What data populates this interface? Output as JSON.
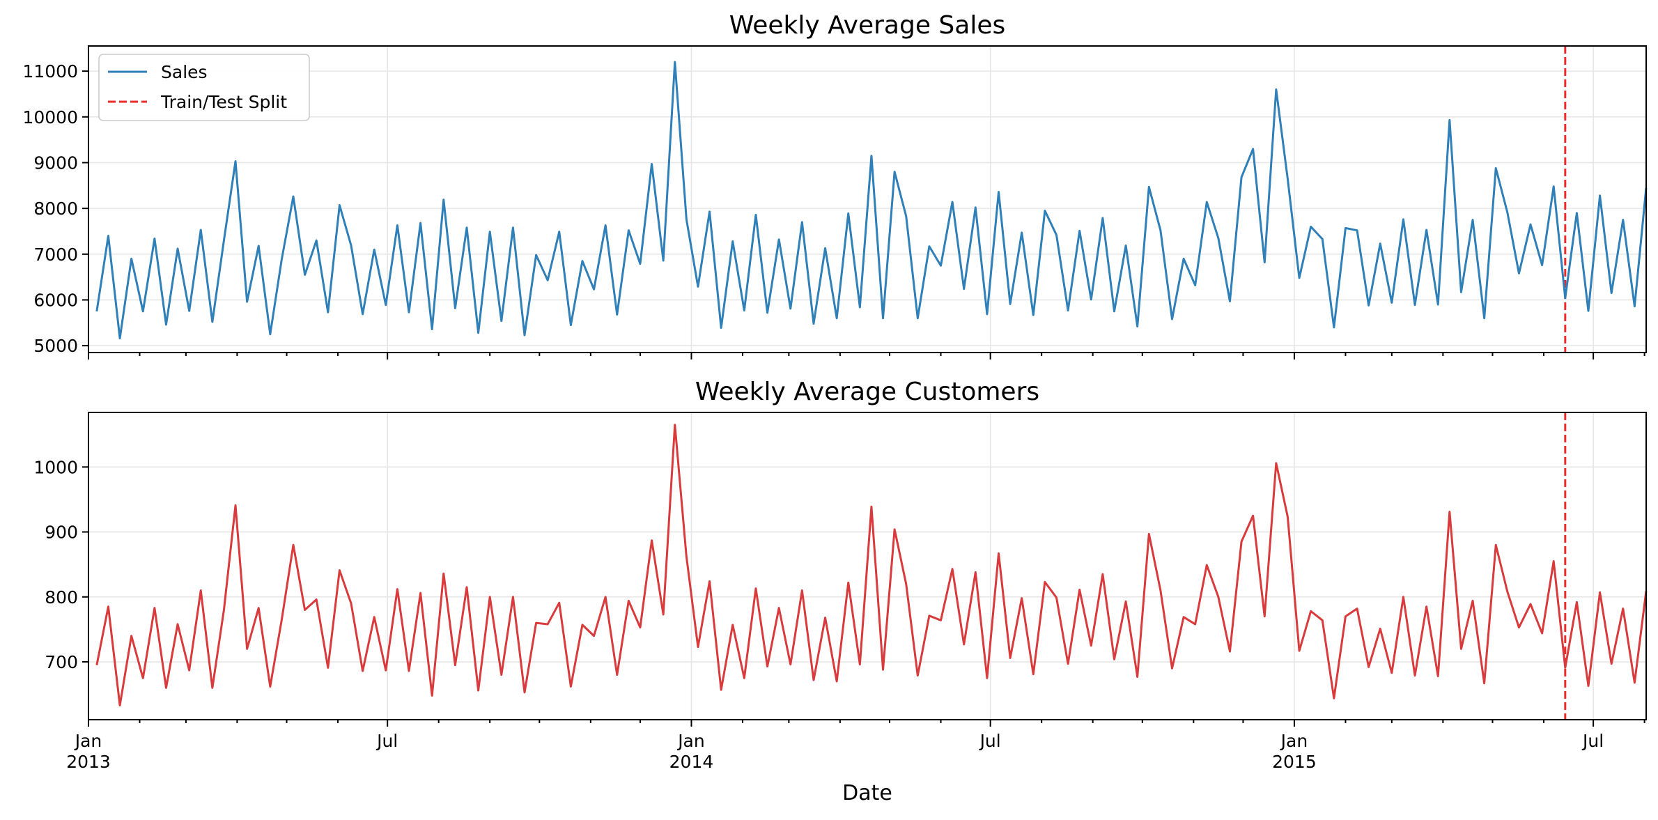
{
  "colors": {
    "sales": "#2f7fb8",
    "customers": "#d93a3b",
    "split": "#ee2b2b"
  },
  "chart_data": [
    {
      "type": "line",
      "title": "Weekly Average Sales",
      "ylabel": "",
      "ylim": [
        4850,
        11550
      ],
      "yticks": [
        5000,
        6000,
        7000,
        8000,
        9000,
        10000,
        11000
      ],
      "grid": true,
      "legend_position": "top-left",
      "legend": [
        "Sales",
        "Train/Test Split"
      ],
      "split_date": "2015-06-14",
      "series": [
        {
          "name": "Sales",
          "color": "#2f7fb8",
          "values": [
            5750,
            7400,
            5160,
            6900,
            5750,
            7340,
            5460,
            7120,
            5760,
            7530,
            5520,
            7300,
            9030,
            5960,
            7180,
            5250,
            6890,
            8260,
            6550,
            7300,
            5730,
            8070,
            7190,
            5690,
            7100,
            5890,
            7630,
            5730,
            7680,
            5360,
            8190,
            5820,
            7580,
            5280,
            7490,
            5540,
            7580,
            5230,
            6980,
            6430,
            7490,
            5450,
            6850,
            6230,
            7630,
            5680,
            7520,
            6790,
            8970,
            6860,
            11200,
            7760,
            6290,
            7930,
            5390,
            7280,
            5770,
            7860,
            5720,
            7320,
            5810,
            7700,
            5480,
            7130,
            5600,
            7890,
            5840,
            9150,
            5600,
            8800,
            7830,
            5600,
            7170,
            6750,
            8140,
            6240,
            8020,
            5690,
            8360,
            5910,
            7470,
            5670,
            7950,
            7420,
            5770,
            7510,
            6010,
            7790,
            5750,
            7190,
            5420,
            8470,
            7520,
            5580,
            6900,
            6320,
            8140,
            7350,
            5970,
            8680,
            9300,
            6820,
            10600,
            8640,
            6480,
            7600,
            7330,
            5400,
            7570,
            7520,
            5880,
            7230,
            5940,
            7760,
            5890,
            7530,
            5900,
            9930,
            6170,
            7750,
            5600,
            8880,
            7910,
            6580,
            7650,
            6760,
            8480,
            6040,
            7900,
            5760,
            8280,
            6150,
            7750,
            5860,
            8450
          ]
        },
        {
          "name": "Train/Test Split",
          "color": "#ee2b2b",
          "style": "dashed"
        }
      ]
    },
    {
      "type": "line",
      "title": "Weekly Average Customers",
      "xlabel": "Date",
      "ylim": [
        611,
        1084
      ],
      "yticks": [
        700,
        800,
        900,
        1000
      ],
      "grid": true,
      "split_date": "2015-06-14",
      "series": [
        {
          "name": "Customers",
          "color": "#d93a3b",
          "values": [
            695,
            785,
            633,
            740,
            675,
            783,
            660,
            758,
            687,
            810,
            660,
            780,
            941,
            720,
            783,
            662,
            765,
            880,
            780,
            796,
            691,
            841,
            790,
            686,
            769,
            687,
            812,
            686,
            806,
            648,
            836,
            695,
            815,
            656,
            800,
            680,
            800,
            653,
            760,
            758,
            791,
            662,
            757,
            740,
            800,
            680,
            794,
            753,
            887,
            773,
            1065,
            862,
            723,
            824,
            657,
            757,
            675,
            813,
            693,
            783,
            696,
            810,
            672,
            768,
            670,
            822,
            696,
            939,
            688,
            904,
            820,
            679,
            771,
            764,
            843,
            727,
            838,
            675,
            867,
            706,
            798,
            681,
            823,
            799,
            697,
            811,
            725,
            835,
            704,
            793,
            677,
            897,
            810,
            690,
            769,
            758,
            849,
            800,
            716,
            885,
            925,
            770,
            1006,
            923,
            717,
            778,
            764,
            644,
            770,
            782,
            692,
            751,
            683,
            800,
            679,
            785,
            678,
            931,
            720,
            794,
            667,
            880,
            808,
            753,
            789,
            744,
            855,
            691,
            792,
            663,
            807,
            697,
            782,
            668,
            809
          ]
        }
      ],
      "x_axis": {
        "start_date": "2013-01-06",
        "step_days": 7,
        "xlim": [
          "2013-01-01",
          "2015-08-02"
        ],
        "major_ticks": [
          {
            "date": "2013-01-01",
            "label": "Jan",
            "year": "2013"
          },
          {
            "date": "2013-07-01",
            "label": "Jul",
            "year": ""
          },
          {
            "date": "2014-01-01",
            "label": "Jan",
            "year": "2014"
          },
          {
            "date": "2014-07-01",
            "label": "Jul",
            "year": ""
          },
          {
            "date": "2015-01-01",
            "label": "Jan",
            "year": "2015"
          },
          {
            "date": "2015-07-01",
            "label": "Jul",
            "year": ""
          }
        ]
      }
    }
  ]
}
